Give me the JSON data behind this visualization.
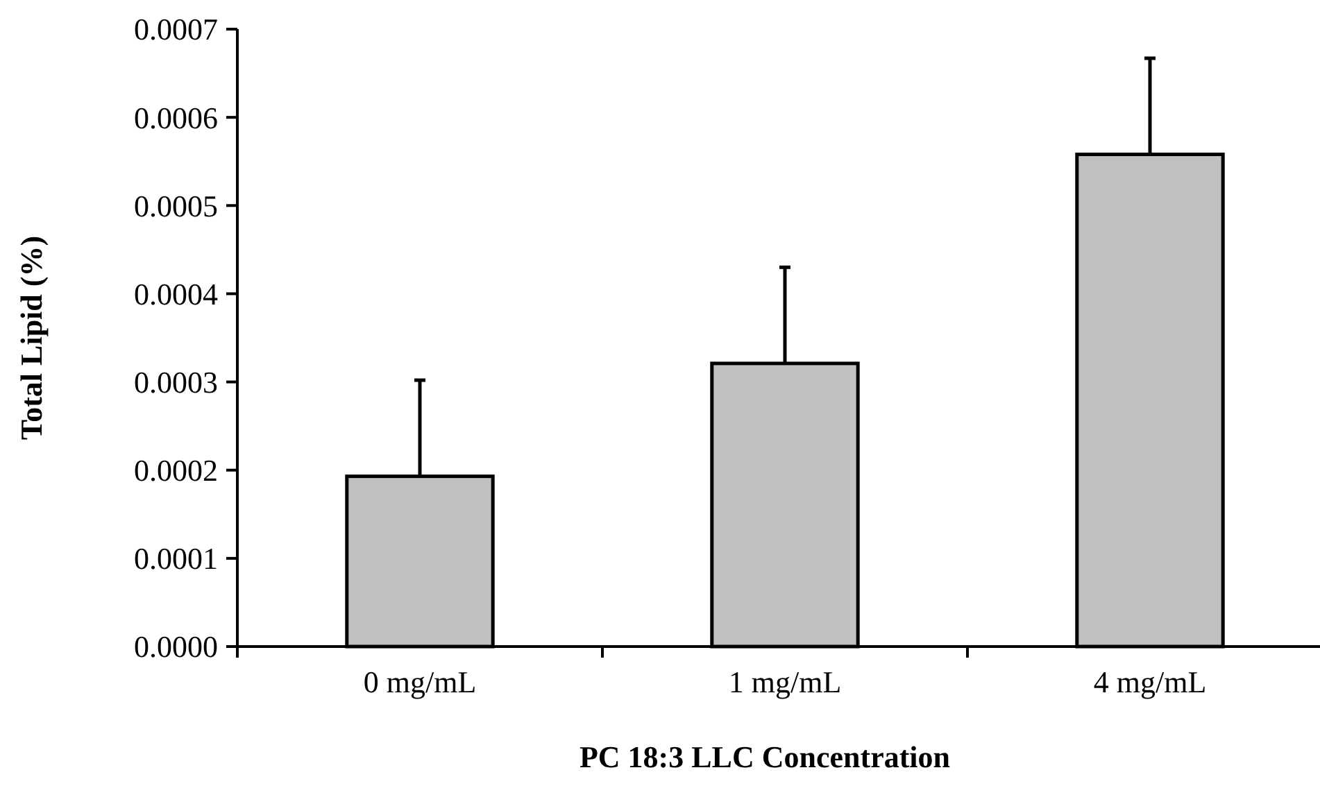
{
  "chart_data": {
    "type": "bar",
    "xlabel": "PC 18:3 LLC Concentration",
    "ylabel": "Total Lipid (%)",
    "categories": [
      "0 mg/mL",
      "1 mg/mL",
      "4 mg/mL"
    ],
    "values": [
      0.000193,
      0.000321,
      0.000558
    ],
    "errors": [
      [
        0.000193,
        0.000302
      ],
      [
        0.000321,
        0.00043
      ],
      [
        0.000558,
        0.000667
      ]
    ],
    "color": "#c0c0c0",
    "ylim": [
      0,
      0.0007
    ],
    "yticks": [
      {
        "value": 0,
        "label": "0.0000"
      },
      {
        "value": 0.0001,
        "label": "0.0001"
      },
      {
        "value": 0.0002,
        "label": "0.0002"
      },
      {
        "value": 0.0003,
        "label": "0.0003"
      },
      {
        "value": 0.0004,
        "label": "0.0004"
      },
      {
        "value": 0.0005,
        "label": "0.0005"
      },
      {
        "value": 0.0006,
        "label": "0.0006"
      },
      {
        "value": 0.0007,
        "label": "0.0007"
      }
    ],
    "grid": false
  }
}
